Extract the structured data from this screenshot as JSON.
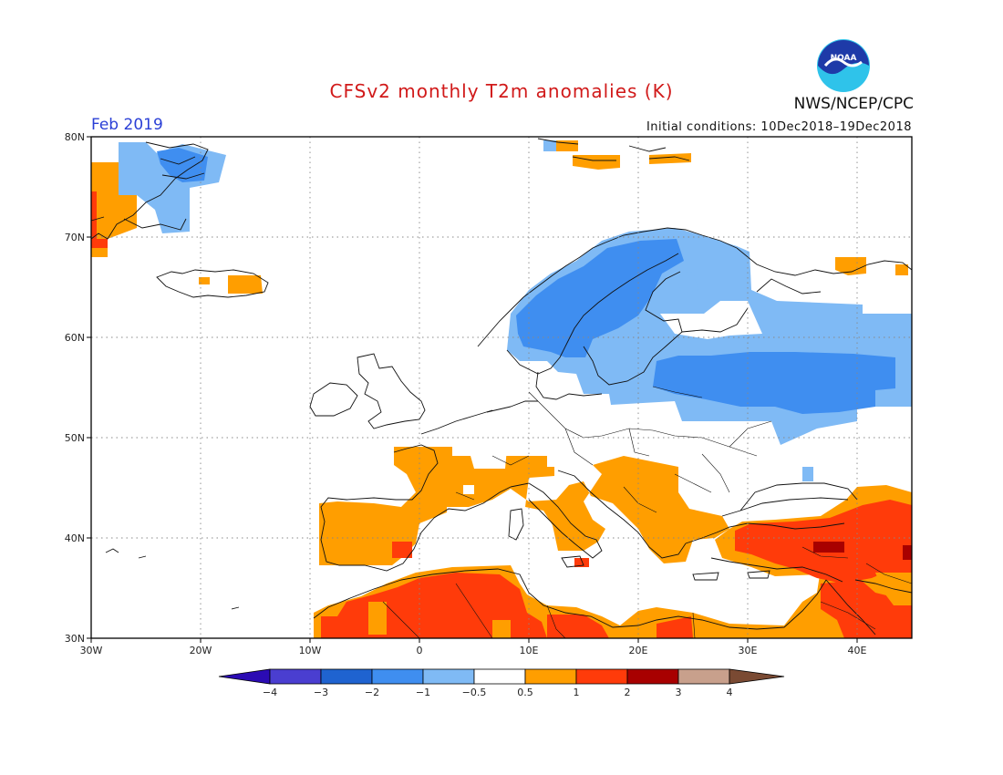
{
  "header": {
    "title": "CFSv2 monthly T2m anomalies (K)",
    "period": "Feb 2019",
    "initial_conditions": "Initial conditions: 10Dec2018–19Dec2018",
    "agency": "NWS/NCEP/CPC",
    "logo_text": "NOAA"
  },
  "map": {
    "lat_labels": [
      "80N",
      "70N",
      "60N",
      "50N",
      "40N",
      "30N"
    ],
    "lon_labels": [
      "30W",
      "20W",
      "10W",
      "0",
      "10E",
      "20E",
      "30E",
      "40E"
    ],
    "lon_range": [
      -30,
      45
    ],
    "lat_range": [
      30,
      80
    ]
  },
  "colorbar": {
    "labels": [
      "−4",
      "−3",
      "−2",
      "−1",
      "−0.5",
      "0.5",
      "1",
      "2",
      "3",
      "4"
    ],
    "colors": [
      "#2b0bb3",
      "#4a3ed0",
      "#1f63d0",
      "#3f8ef0",
      "#7fbaf5",
      "#ffffff",
      "#ff9e00",
      "#ff3b0a",
      "#a80000",
      "#c8a08c",
      "#7a4a33"
    ]
  },
  "anomaly_colors": {
    "light_blue": "#7fbaf5",
    "mid_blue": "#3f8ef0",
    "orange": "#ff9e00",
    "red_orange": "#ff3b0a",
    "dark_red": "#a80000"
  }
}
